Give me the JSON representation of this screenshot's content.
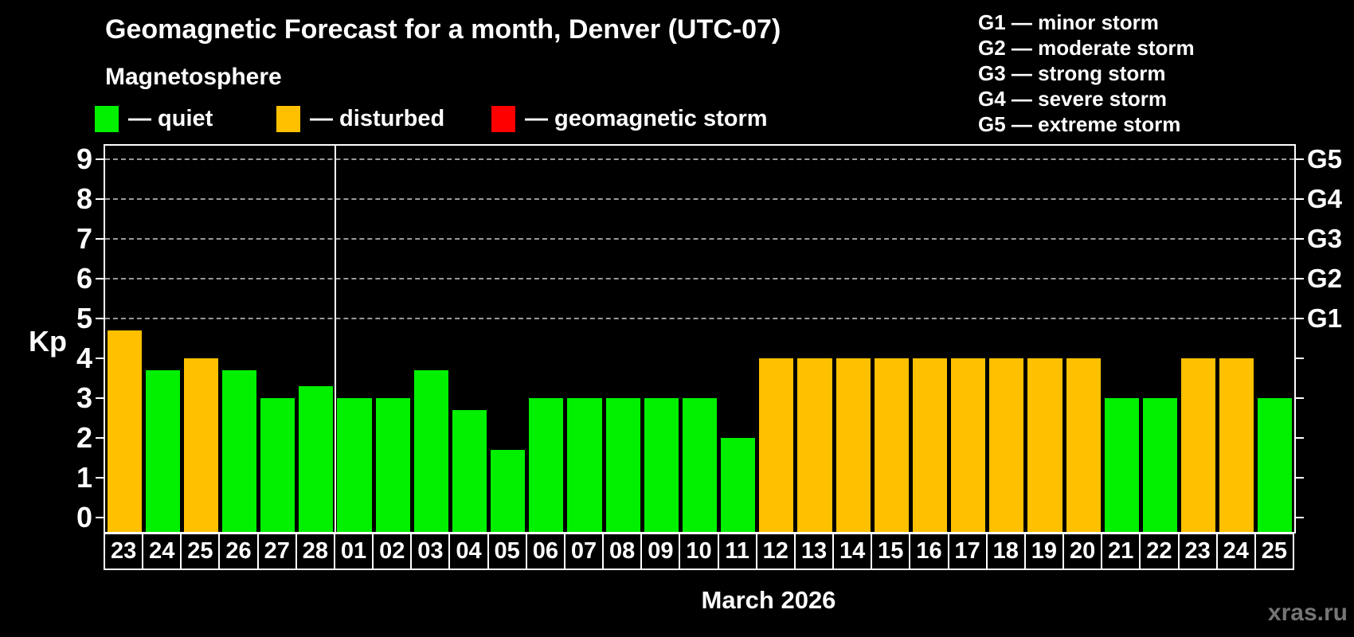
{
  "header": {
    "title": "Geomagnetic Forecast for a month, Denver (UTC-07)",
    "subtitle": "Magnetosphere"
  },
  "colors": {
    "quiet": "#00F000",
    "disturbed": "#FFC000",
    "storm": "#FF0000",
    "background": "#000000",
    "foreground": "#FFFFFF",
    "gridline": "#9A9A9A",
    "watermark": "#757575"
  },
  "legend": {
    "items": [
      {
        "label": "quiet",
        "color": "#00F000"
      },
      {
        "label": "disturbed",
        "color": "#FFC000"
      },
      {
        "label": "geomagnetic storm",
        "color": "#FF0000"
      }
    ]
  },
  "g_scale_legend": [
    {
      "code": "G1",
      "desc": "minor storm"
    },
    {
      "code": "G2",
      "desc": "moderate storm"
    },
    {
      "code": "G3",
      "desc": "strong storm"
    },
    {
      "code": "G4",
      "desc": "severe storm"
    },
    {
      "code": "G5",
      "desc": "extreme storm"
    }
  ],
  "chart_data": {
    "type": "bar",
    "title": "Geomagnetic Forecast for a month, Denver (UTC-07)",
    "ylabel": "Kp",
    "xlabel": "March 2026",
    "ylim": [
      0,
      9
    ],
    "y_ticks": [
      0,
      1,
      2,
      3,
      4,
      5,
      6,
      7,
      8,
      9
    ],
    "grid_levels": [
      5,
      6,
      7,
      8,
      9
    ],
    "grid_style": "dashed",
    "legend_position": "top-left",
    "right_axis": [
      {
        "code": "G5",
        "kp": 9
      },
      {
        "code": "G4",
        "kp": 8
      },
      {
        "code": "G3",
        "kp": 7
      },
      {
        "code": "G2",
        "kp": 6
      },
      {
        "code": "G1",
        "kp": 5
      }
    ],
    "divider_after_index": 5,
    "series": [
      {
        "day": "23",
        "kp": 4.7,
        "status": "disturbed"
      },
      {
        "day": "24",
        "kp": 3.7,
        "status": "quiet"
      },
      {
        "day": "25",
        "kp": 4.0,
        "status": "disturbed"
      },
      {
        "day": "26",
        "kp": 3.7,
        "status": "quiet"
      },
      {
        "day": "27",
        "kp": 3.0,
        "status": "quiet"
      },
      {
        "day": "28",
        "kp": 3.3,
        "status": "quiet"
      },
      {
        "day": "01",
        "kp": 3.0,
        "status": "quiet"
      },
      {
        "day": "02",
        "kp": 3.0,
        "status": "quiet"
      },
      {
        "day": "03",
        "kp": 3.7,
        "status": "quiet"
      },
      {
        "day": "04",
        "kp": 2.7,
        "status": "quiet"
      },
      {
        "day": "05",
        "kp": 1.7,
        "status": "quiet"
      },
      {
        "day": "06",
        "kp": 3.0,
        "status": "quiet"
      },
      {
        "day": "07",
        "kp": 3.0,
        "status": "quiet"
      },
      {
        "day": "08",
        "kp": 3.0,
        "status": "quiet"
      },
      {
        "day": "09",
        "kp": 3.0,
        "status": "quiet"
      },
      {
        "day": "10",
        "kp": 3.0,
        "status": "quiet"
      },
      {
        "day": "11",
        "kp": 2.0,
        "status": "quiet"
      },
      {
        "day": "12",
        "kp": 4.0,
        "status": "disturbed"
      },
      {
        "day": "13",
        "kp": 4.0,
        "status": "disturbed"
      },
      {
        "day": "14",
        "kp": 4.0,
        "status": "disturbed"
      },
      {
        "day": "15",
        "kp": 4.0,
        "status": "disturbed"
      },
      {
        "day": "16",
        "kp": 4.0,
        "status": "disturbed"
      },
      {
        "day": "17",
        "kp": 4.0,
        "status": "disturbed"
      },
      {
        "day": "18",
        "kp": 4.0,
        "status": "disturbed"
      },
      {
        "day": "19",
        "kp": 4.0,
        "status": "disturbed"
      },
      {
        "day": "20",
        "kp": 4.0,
        "status": "disturbed"
      },
      {
        "day": "21",
        "kp": 3.0,
        "status": "quiet"
      },
      {
        "day": "22",
        "kp": 3.0,
        "status": "quiet"
      },
      {
        "day": "23",
        "kp": 4.0,
        "status": "disturbed"
      },
      {
        "day": "24",
        "kp": 4.0,
        "status": "disturbed"
      },
      {
        "day": "25",
        "kp": 3.0,
        "status": "quiet"
      }
    ]
  },
  "footer": {
    "month_label": "March 2026",
    "watermark": "xras.ru"
  }
}
